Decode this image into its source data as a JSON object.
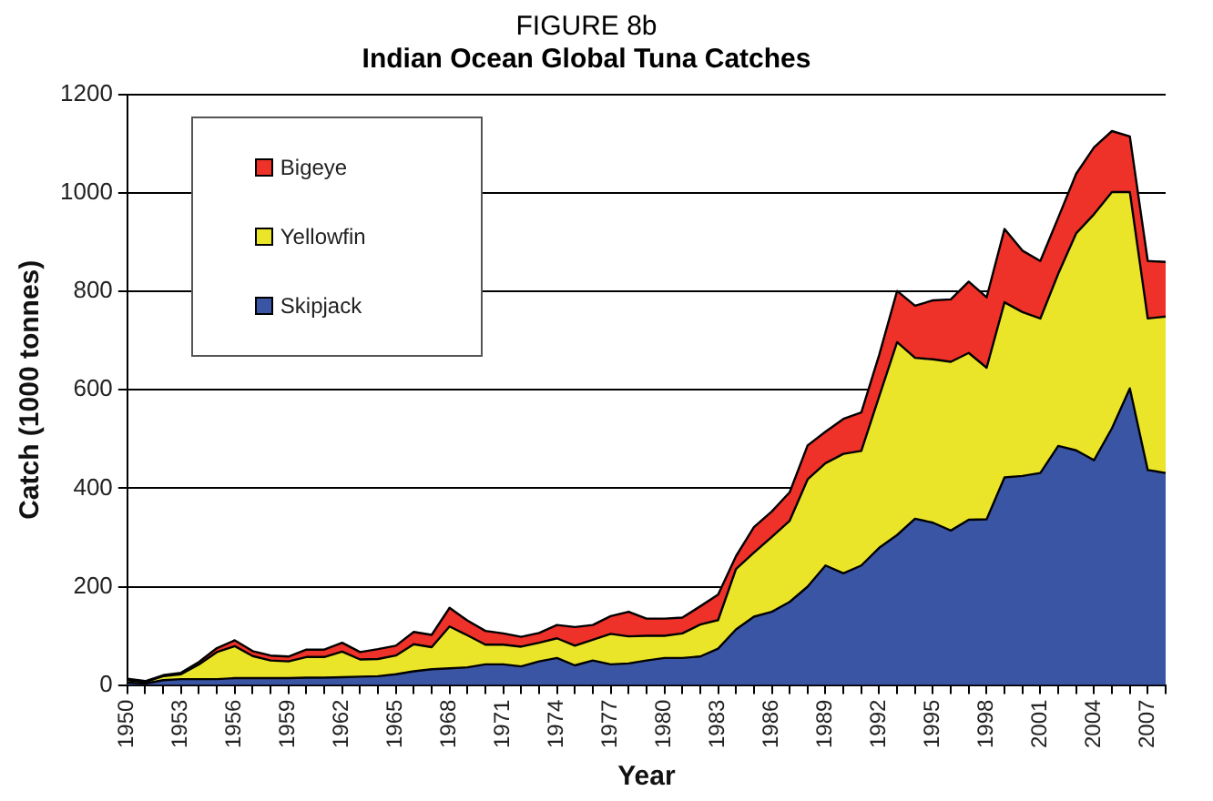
{
  "chart_data": {
    "type": "area",
    "title": "FIGURE 8b",
    "subtitle": "Indian Ocean Global Tuna Catches",
    "xlabel": "Year",
    "ylabel": "Catch (1000 tonnes)",
    "categories": [
      "1950",
      null,
      null,
      "1953",
      null,
      null,
      "1956",
      null,
      null,
      "1959",
      null,
      null,
      "1962",
      null,
      null,
      "1965",
      null,
      null,
      "1968",
      null,
      null,
      "1971",
      null,
      null,
      "1974",
      null,
      null,
      "1977",
      null,
      null,
      "1980",
      null,
      null,
      "1983",
      null,
      null,
      "1986",
      null,
      null,
      "1989",
      null,
      null,
      "1992",
      null,
      null,
      "1995",
      null,
      null,
      "1998",
      null,
      null,
      "2001",
      null,
      null,
      "2004",
      null,
      null,
      "2007",
      null
    ],
    "stacked": true,
    "ylim": [
      0,
      1200
    ],
    "yticks": [
      0,
      200,
      400,
      600,
      800,
      1000,
      1200
    ],
    "grid": "y",
    "legend": "top left",
    "series": [
      {
        "name": "Skipjack",
        "color": "#3a55a4",
        "values": [
          5,
          3,
          10,
          12,
          12,
          12,
          14,
          14,
          14,
          14,
          15,
          15,
          16,
          17,
          18,
          22,
          28,
          32,
          34,
          36,
          42,
          42,
          38,
          48,
          55,
          40,
          50,
          42,
          44,
          50,
          55,
          55,
          58,
          74,
          113,
          139,
          149,
          169,
          200,
          243,
          227,
          243,
          279,
          305,
          338,
          330,
          314,
          336,
          337,
          422,
          425,
          431,
          486,
          477,
          457,
          522,
          603,
          437,
          431
        ]
      },
      {
        "name": "Yellowfin",
        "color": "#ebe52a",
        "values": [
          5,
          3,
          8,
          10,
          30,
          55,
          65,
          45,
          36,
          34,
          42,
          42,
          52,
          35,
          35,
          38,
          55,
          45,
          85,
          65,
          40,
          40,
          40,
          38,
          40,
          40,
          42,
          62,
          55,
          50,
          45,
          50,
          65,
          58,
          123,
          130,
          152,
          165,
          218,
          208,
          243,
          233,
          308,
          392,
          327,
          332,
          343,
          339,
          308,
          356,
          333,
          314,
          350,
          441,
          500,
          480,
          399,
          308,
          318
        ]
      },
      {
        "name": "Bigeye",
        "color": "#ee3129",
        "values": [
          3,
          2,
          2,
          3,
          5,
          8,
          12,
          10,
          10,
          10,
          15,
          15,
          18,
          15,
          20,
          20,
          25,
          25,
          38,
          30,
          28,
          23,
          20,
          20,
          27,
          38,
          30,
          36,
          50,
          35,
          35,
          32,
          37,
          52,
          26,
          52,
          52,
          58,
          69,
          64,
          71,
          78,
          84,
          104,
          106,
          120,
          127,
          145,
          143,
          149,
          125,
          117,
          114,
          121,
          136,
          124,
          113,
          117,
          111
        ]
      }
    ]
  }
}
